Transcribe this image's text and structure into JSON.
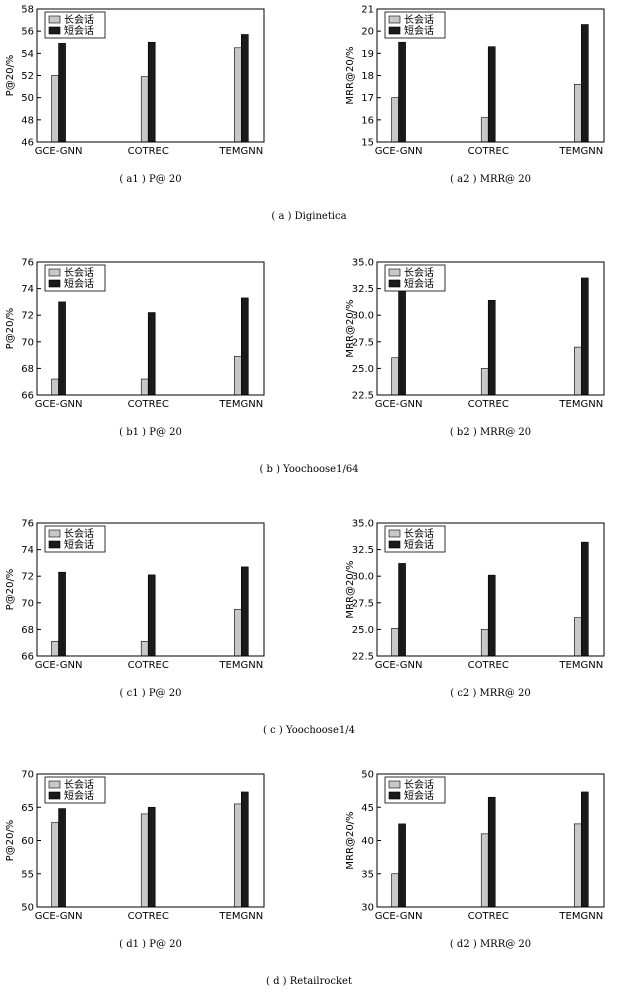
{
  "colors": {
    "long": "#c8c8c8",
    "short": "#1a1a1a",
    "axis": "#000000"
  },
  "datasets": [
    {
      "caption": "( a ) Diginetica",
      "charts": [
        {
          "caption": "( a1 ) P@ 20",
          "chart_data": {
            "type": "bar",
            "ylabel": "P@20/%",
            "categories": [
              "GCE-GNN",
              "COTREC",
              "TEMGNN"
            ],
            "ylim": [
              46,
              58
            ],
            "yticks": [
              "46",
              "48",
              "50",
              "52",
              "54",
              "56",
              "58"
            ],
            "legend": "top-left",
            "series": [
              {
                "name": "长会话",
                "values": [
                  52.0,
                  51.9,
                  54.5
                ]
              },
              {
                "name": "短会话",
                "values": [
                  54.9,
                  55.0,
                  55.7
                ]
              }
            ]
          }
        },
        {
          "caption": "( a2 ) MRR@ 20",
          "chart_data": {
            "type": "bar",
            "ylabel": "MRR@20/%",
            "categories": [
              "GCE-GNN",
              "COTREC",
              "TEMGNN"
            ],
            "ylim": [
              15,
              21
            ],
            "yticks": [
              "15",
              "16",
              "17",
              "18",
              "19",
              "20",
              "21"
            ],
            "legend": "top-left",
            "series": [
              {
                "name": "长会话",
                "values": [
                  17.0,
                  16.1,
                  17.6
                ]
              },
              {
                "name": "短会话",
                "values": [
                  19.5,
                  19.3,
                  20.3
                ]
              }
            ]
          }
        }
      ]
    },
    {
      "caption": "( b ) Yoochoose1/64",
      "charts": [
        {
          "caption": "( b1 ) P@ 20",
          "chart_data": {
            "type": "bar",
            "ylabel": "P@20/%",
            "categories": [
              "GCE-GNN",
              "COTREC",
              "TEMGNN"
            ],
            "ylim": [
              66,
              76
            ],
            "yticks": [
              "66",
              "68",
              "70",
              "72",
              "74",
              "76"
            ],
            "legend": "top-left",
            "series": [
              {
                "name": "长会话",
                "values": [
                  67.2,
                  67.2,
                  68.9
                ]
              },
              {
                "name": "短会话",
                "values": [
                  73.0,
                  72.2,
                  73.3
                ]
              }
            ]
          }
        },
        {
          "caption": "( b2 ) MRR@ 20",
          "chart_data": {
            "type": "bar",
            "ylabel": "MRR@20/%",
            "categories": [
              "GCE-GNN",
              "COTREC",
              "TEMGNN"
            ],
            "ylim": [
              22.5,
              35.0
            ],
            "yticks": [
              "22.5",
              "25.0",
              "27.5",
              "30.0",
              "32.5",
              "35.0"
            ],
            "legend": "top-left",
            "series": [
              {
                "name": "长会话",
                "values": [
                  26.0,
                  25.0,
                  27.0
                ]
              },
              {
                "name": "短会话",
                "values": [
                  32.9,
                  31.4,
                  33.5
                ]
              }
            ]
          }
        }
      ]
    },
    {
      "caption": "( c ) Yoochoose1/4",
      "charts": [
        {
          "caption": "( c1 ) P@ 20",
          "chart_data": {
            "type": "bar",
            "ylabel": "P@20/%",
            "categories": [
              "GCE-GNN",
              "COTREC",
              "TEMGNN"
            ],
            "ylim": [
              66,
              76
            ],
            "yticks": [
              "66",
              "68",
              "70",
              "72",
              "74",
              "76"
            ],
            "legend": "top-left",
            "series": [
              {
                "name": "长会话",
                "values": [
                  67.1,
                  67.1,
                  69.5
                ]
              },
              {
                "name": "短会话",
                "values": [
                  72.3,
                  72.1,
                  72.7
                ]
              }
            ]
          }
        },
        {
          "caption": "( c2 ) MRR@ 20",
          "chart_data": {
            "type": "bar",
            "ylabel": "MRR@20/%",
            "categories": [
              "GCE-GNN",
              "COTREC",
              "TEMGNN"
            ],
            "ylim": [
              22.5,
              35.0
            ],
            "yticks": [
              "22.5",
              "25.0",
              "27.5",
              "30.0",
              "32.5",
              "35.0"
            ],
            "legend": "top-left",
            "series": [
              {
                "name": "长会话",
                "values": [
                  25.1,
                  25.0,
                  26.1
                ]
              },
              {
                "name": "短会话",
                "values": [
                  31.2,
                  30.1,
                  33.2
                ]
              }
            ]
          }
        }
      ]
    },
    {
      "caption": "( d ) Retailrocket",
      "charts": [
        {
          "caption": "( d1 ) P@ 20",
          "chart_data": {
            "type": "bar",
            "ylabel": "P@20/%",
            "categories": [
              "GCE-GNN",
              "COTREC",
              "TEMGNN"
            ],
            "ylim": [
              50,
              70
            ],
            "yticks": [
              "50",
              "55",
              "60",
              "65",
              "70"
            ],
            "legend": "top-left",
            "series": [
              {
                "name": "长会话",
                "values": [
                  62.7,
                  64.0,
                  65.5
                ]
              },
              {
                "name": "短会话",
                "values": [
                  64.8,
                  65.0,
                  67.3
                ]
              }
            ]
          }
        },
        {
          "caption": "( d2 ) MRR@ 20",
          "chart_data": {
            "type": "bar",
            "ylabel": "MRR@20/%",
            "categories": [
              "GCE-GNN",
              "COTREC",
              "TEMGNN"
            ],
            "ylim": [
              30,
              50
            ],
            "yticks": [
              "30",
              "35",
              "40",
              "45",
              "50"
            ],
            "legend": "top-left",
            "series": [
              {
                "name": "长会话",
                "values": [
                  35.0,
                  41.0,
                  42.5
                ]
              },
              {
                "name": "短会话",
                "values": [
                  42.5,
                  46.5,
                  47.3
                ]
              }
            ]
          }
        }
      ]
    }
  ]
}
